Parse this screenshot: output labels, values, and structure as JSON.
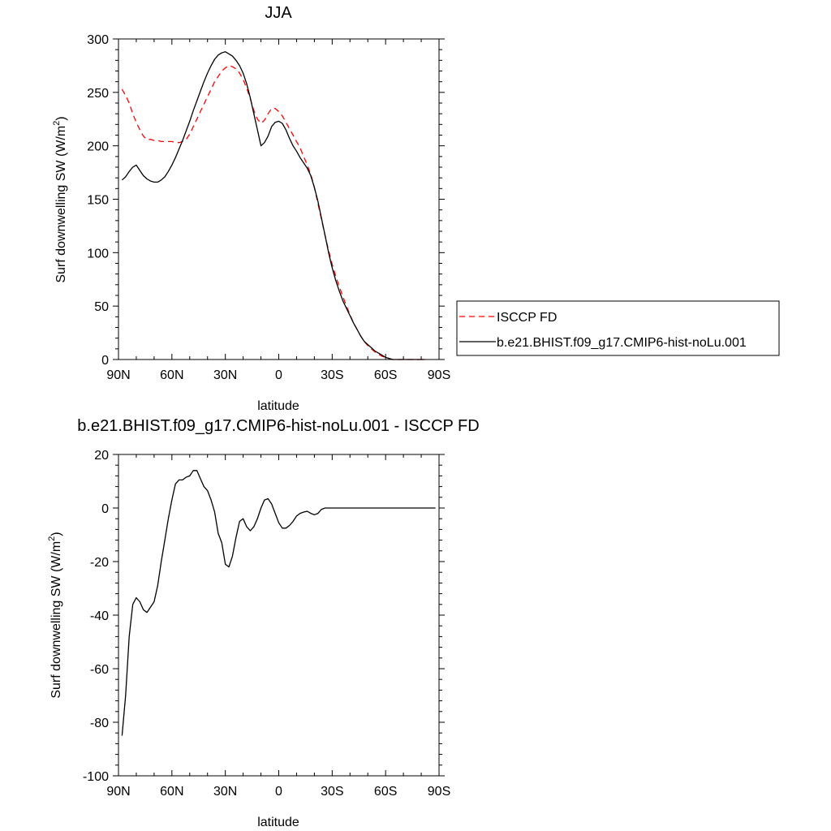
{
  "chart_data": [
    {
      "type": "line",
      "title": "JJA",
      "xlabel": "latitude",
      "ylabel": "Surf downwelling SW (W/m",
      "ylabel_sup": "2",
      "ylabel_tail": ")",
      "xlim": [
        90,
        -90
      ],
      "ylim": [
        0,
        300
      ],
      "x_ticks": [
        90,
        60,
        30,
        0,
        -30,
        -60,
        -90
      ],
      "x_tick_labels": [
        "90N",
        "60N",
        "30N",
        "0",
        "30S",
        "60S",
        "90S"
      ],
      "y_ticks": [
        0,
        50,
        100,
        150,
        200,
        250,
        300
      ],
      "y_tick_labels": [
        "0",
        "50",
        "100",
        "150",
        "200",
        "250",
        "300"
      ],
      "legend_position": "right",
      "series": [
        {
          "name": "ISCCP FD",
          "color": "#ff0000",
          "dash": "dashed",
          "x": [
            88,
            86,
            84,
            82,
            80,
            78,
            76,
            74,
            72,
            70,
            68,
            66,
            64,
            62,
            60,
            58,
            56,
            54,
            52,
            50,
            48,
            46,
            44,
            42,
            40,
            38,
            36,
            34,
            32,
            30,
            28,
            26,
            24,
            22,
            20,
            18,
            16,
            14,
            12,
            10,
            8,
            6,
            4,
            2,
            0,
            -2,
            -4,
            -6,
            -8,
            -10,
            -12,
            -14,
            -16,
            -18,
            -20,
            -22,
            -24,
            -26,
            -28,
            -30,
            -32,
            -34,
            -36,
            -38,
            -40,
            -42,
            -44,
            -46,
            -48,
            -50,
            -52,
            -54,
            -56,
            -58,
            -60,
            -62,
            -64,
            -66,
            -68,
            -70,
            -72,
            -74,
            -76,
            -78,
            -80,
            -82
          ],
          "y": [
            253,
            247,
            240,
            230,
            222,
            215,
            209,
            206,
            206,
            205,
            205,
            204,
            204,
            204,
            204,
            203,
            203,
            204,
            206,
            211,
            218,
            225,
            232,
            239,
            246,
            253,
            260,
            265,
            270,
            273,
            275,
            274,
            272,
            268,
            262,
            254,
            244,
            233,
            225,
            221,
            224,
            230,
            235,
            235,
            232,
            228,
            222,
            216,
            210,
            204,
            198,
            190,
            182,
            173,
            161,
            146,
            131,
            116,
            102,
            89,
            78,
            68,
            59,
            50,
            42,
            34,
            28,
            22,
            17,
            13,
            10,
            7,
            5,
            3,
            2,
            1,
            0,
            0,
            0,
            0,
            0,
            0,
            0,
            0,
            0,
            0
          ]
        },
        {
          "name": "b.e21.BHIST.f09_g17.CMIP6-hist-noLu.001",
          "color": "#000000",
          "dash": "solid",
          "x": [
            88,
            86,
            84,
            82,
            80,
            78,
            76,
            74,
            72,
            70,
            68,
            66,
            64,
            62,
            60,
            58,
            56,
            54,
            52,
            50,
            48,
            46,
            44,
            42,
            40,
            38,
            36,
            34,
            32,
            30,
            28,
            26,
            24,
            22,
            20,
            18,
            16,
            14,
            12,
            10,
            8,
            6,
            4,
            2,
            0,
            -2,
            -4,
            -6,
            -8,
            -10,
            -12,
            -14,
            -16,
            -18,
            -20,
            -22,
            -24,
            -26,
            -28,
            -30,
            -32,
            -34,
            -36,
            -38,
            -40,
            -42,
            -44,
            -46,
            -48,
            -50,
            -52,
            -54,
            -56,
            -58,
            -60,
            -62,
            -64,
            -66,
            -68,
            -70,
            -72,
            -74,
            -76,
            -78,
            -80,
            -82
          ],
          "y": [
            168,
            171,
            176,
            180,
            182,
            177,
            172,
            169,
            167,
            166,
            166,
            168,
            171,
            176,
            182,
            189,
            197,
            205,
            214,
            223,
            233,
            242,
            251,
            260,
            268,
            275,
            281,
            285,
            287,
            288,
            286,
            284,
            280,
            275,
            268,
            258,
            245,
            230,
            215,
            200,
            203,
            209,
            218,
            222,
            223,
            221,
            215,
            207,
            200,
            195,
            189,
            184,
            179,
            172,
            161,
            148,
            132,
            116,
            100,
            86,
            74,
            64,
            55,
            48,
            41,
            34,
            28,
            22,
            17,
            14,
            11,
            8,
            6,
            4,
            2,
            1,
            0,
            0,
            0,
            0,
            0,
            0,
            0,
            0,
            0,
            0
          ]
        }
      ]
    },
    {
      "type": "line",
      "title": "b.e21.BHIST.f09_g17.CMIP6-hist-noLu.001 - ISCCP FD",
      "xlabel": "latitude",
      "ylabel": "Surf downwelling SW (W/m",
      "ylabel_sup": "2",
      "ylabel_tail": ")",
      "xlim": [
        90,
        -90
      ],
      "ylim": [
        -100,
        20
      ],
      "x_ticks": [
        90,
        60,
        30,
        0,
        -30,
        -60,
        -90
      ],
      "x_tick_labels": [
        "90N",
        "60N",
        "30N",
        "0",
        "30S",
        "60S",
        "90S"
      ],
      "y_ticks": [
        -100,
        -80,
        -60,
        -40,
        -20,
        0,
        20
      ],
      "y_tick_labels": [
        "-100",
        "-80",
        "-60",
        "-40",
        "-20",
        "0",
        "20"
      ],
      "series": [
        {
          "color": "#000000",
          "dash": "solid",
          "x": [
            88,
            86,
            84,
            82,
            80,
            78,
            76,
            74,
            72,
            70,
            68,
            66,
            64,
            62,
            60,
            58,
            56,
            54,
            52,
            50,
            48,
            46,
            44,
            42,
            40,
            38,
            36,
            34,
            32,
            30,
            28,
            26,
            24,
            22,
            20,
            18,
            16,
            14,
            12,
            10,
            8,
            6,
            4,
            2,
            0,
            -2,
            -4,
            -6,
            -8,
            -10,
            -12,
            -14,
            -16,
            -18,
            -20,
            -22,
            -24,
            -26,
            -28,
            -30,
            -32,
            -34,
            -36,
            -38,
            -40,
            -42,
            -44,
            -46,
            -48,
            -50,
            -52,
            -54,
            -56,
            -58,
            -60,
            -62,
            -64,
            -66,
            -68,
            -70,
            -72,
            -74,
            -76,
            -78,
            -80,
            -82,
            -84,
            -86,
            -88
          ],
          "y": [
            -85,
            -70,
            -48,
            -36,
            -33.5,
            -35,
            -38,
            -39,
            -37,
            -35,
            -29,
            -20,
            -12,
            -4,
            3,
            9,
            10.5,
            10.5,
            11.5,
            12,
            14,
            14,
            11,
            8,
            6.5,
            3,
            -1.5,
            -9.5,
            -13,
            -21,
            -22,
            -18,
            -11,
            -5,
            -4,
            -7,
            -8.5,
            -7,
            -4,
            0,
            3,
            3.5,
            1.5,
            -2,
            -5.5,
            -7.5,
            -7.5,
            -6.5,
            -5,
            -3,
            -2,
            -1.5,
            -1.2,
            -2,
            -2.5,
            -2,
            -0.5,
            0,
            0,
            0,
            0,
            0,
            0,
            0,
            0,
            0,
            0,
            0,
            0,
            0,
            0,
            0,
            0,
            0,
            0,
            0,
            0,
            0,
            0,
            0,
            0,
            0,
            0,
            0,
            0,
            0,
            0,
            0,
            0
          ]
        }
      ]
    }
  ],
  "legend": {
    "items": [
      {
        "label": "ISCCP FD",
        "color": "#ff0000",
        "dash": "dashed"
      },
      {
        "label": "b.e21.BHIST.f09_g17.CMIP6-hist-noLu.001",
        "color": "#000000",
        "dash": "solid"
      }
    ]
  }
}
